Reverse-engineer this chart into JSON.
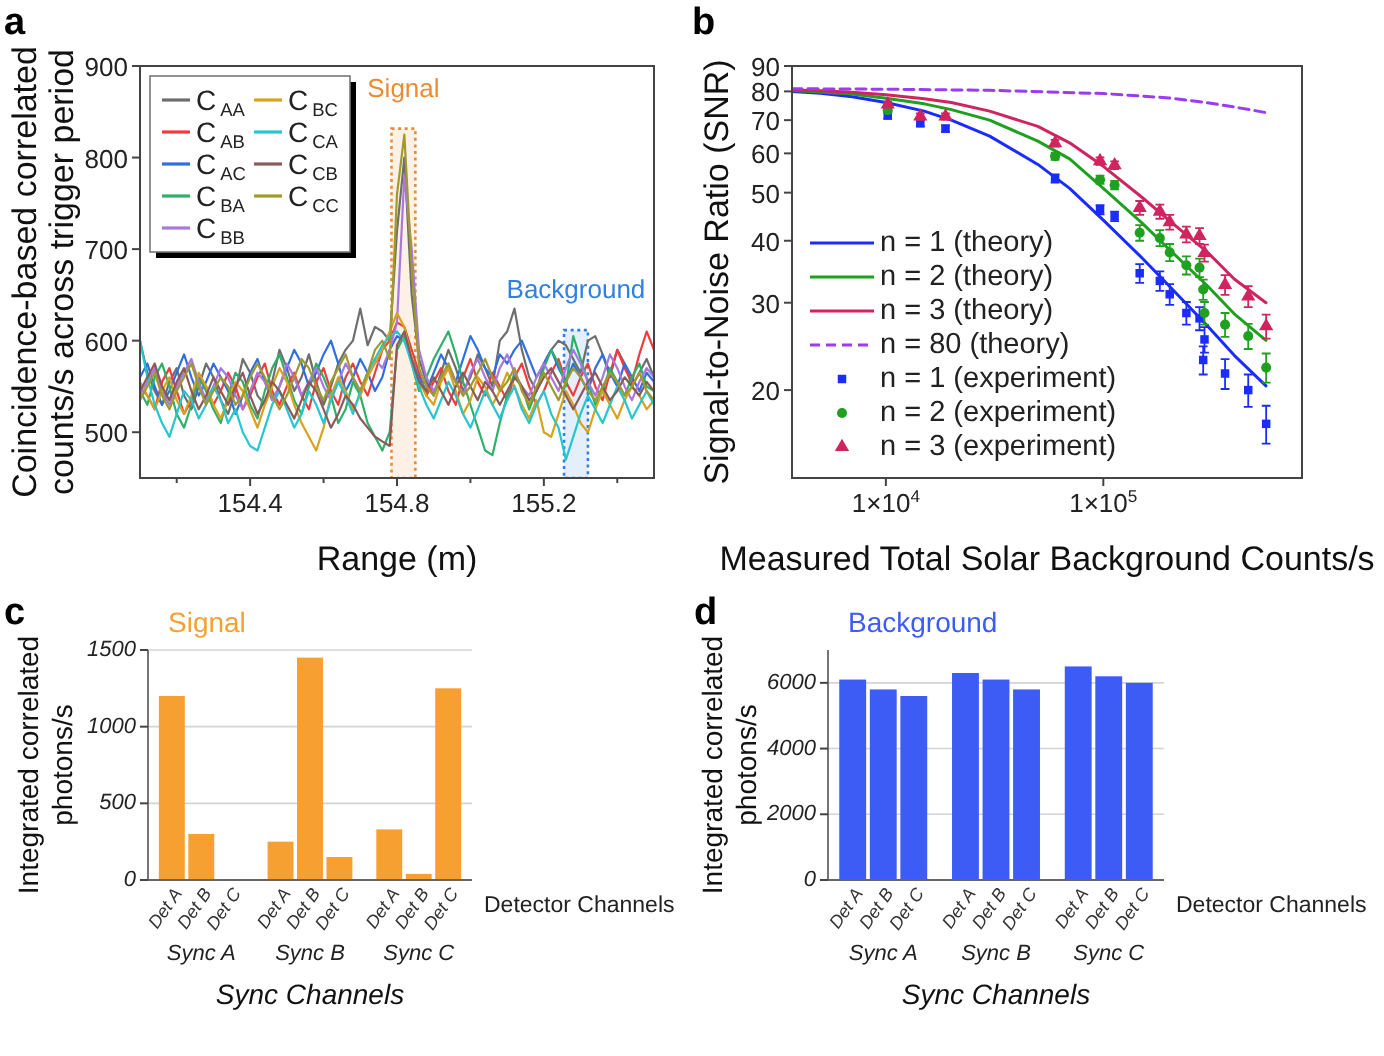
{
  "chart_data": [
    {
      "type": "line",
      "title": "a",
      "xlabel": "Range (m)",
      "ylabel": "Coincidence-based correlated counts/s across trigger period",
      "x": [
        154.1,
        154.12,
        154.14,
        154.16,
        154.18,
        154.2,
        154.22,
        154.24,
        154.26,
        154.28,
        154.3,
        154.32,
        154.34,
        154.36,
        154.38,
        154.4,
        154.42,
        154.44,
        154.46,
        154.48,
        154.5,
        154.52,
        154.54,
        154.56,
        154.58,
        154.6,
        154.62,
        154.64,
        154.66,
        154.68,
        154.7,
        154.72,
        154.74,
        154.76,
        154.78,
        154.8,
        154.82,
        154.84,
        154.86,
        154.88,
        154.9,
        154.92,
        154.94,
        154.96,
        154.98,
        155,
        155.02,
        155.04,
        155.06,
        155.08,
        155.1,
        155.12,
        155.14,
        155.16,
        155.18,
        155.2,
        155.22,
        155.24,
        155.26,
        155.28,
        155.3,
        155.32,
        155.34,
        155.36,
        155.38,
        155.4,
        155.42,
        155.44,
        155.46,
        155.48,
        155.5
      ],
      "xlim": [
        154.1,
        155.5
      ],
      "xticks": [
        {
          "value": 154.2,
          "label": null
        },
        154.4,
        {
          "value": 154.6,
          "label": null
        },
        154.8,
        {
          "value": 155.0,
          "label": null
        },
        155.2,
        {
          "value": 155.4,
          "label": null
        }
      ],
      "ylim": [
        450,
        900
      ],
      "yticks": [
        500,
        600,
        700,
        800,
        900
      ],
      "legend": "top left",
      "bands": [
        {
          "axis": "x",
          "from": 154.785,
          "to": 154.85,
          "label": "Signal",
          "color": "#f08a30"
        },
        {
          "axis": "x",
          "from": 155.255,
          "to": 155.32,
          "label": "Background",
          "color": "#2f80e0"
        }
      ],
      "series": [
        {
          "name": "C$_{AA}$",
          "color": "#6e6e6e",
          "values": [
            600,
            565,
            545,
            530,
            555,
            570,
            540,
            525,
            550,
            575,
            560,
            535,
            520,
            545,
            580,
            565,
            540,
            530,
            555,
            590,
            570,
            545,
            560,
            585,
            555,
            530,
            550,
            575,
            590,
            600,
            635,
            595,
            615,
            610,
            600,
            720,
            800,
            650,
            580,
            555,
            540,
            565,
            590,
            570,
            545,
            560,
            585,
            570,
            550,
            600,
            610,
            635,
            590,
            560,
            545,
            575,
            590,
            600,
            595,
            580,
            565,
            600,
            605,
            585,
            560,
            590,
            575,
            550,
            565,
            580,
            560
          ]
        },
        {
          "name": "C$_{AB}$",
          "color": "#f03c3c",
          "values": [
            550,
            540,
            525,
            555,
            570,
            545,
            520,
            535,
            560,
            550,
            530,
            545,
            565,
            550,
            525,
            540,
            560,
            575,
            545,
            530,
            550,
            565,
            540,
            525,
            555,
            570,
            545,
            530,
            560,
            575,
            555,
            540,
            565,
            590,
            600,
            620,
            615,
            590,
            565,
            540,
            555,
            570,
            545,
            530,
            560,
            580,
            555,
            540,
            565,
            550,
            535,
            560,
            575,
            550,
            530,
            545,
            565,
            580,
            555,
            540,
            560,
            575,
            550,
            535,
            565,
            590,
            570,
            555,
            585,
            610,
            590
          ]
        },
        {
          "name": "C$_{AC}$",
          "color": "#2f6fe0",
          "values": [
            560,
            575,
            550,
            530,
            545,
            565,
            585,
            560,
            540,
            555,
            575,
            560,
            545,
            520,
            540,
            565,
            580,
            555,
            535,
            550,
            570,
            590,
            575,
            550,
            565,
            585,
            600,
            575,
            545,
            560,
            580,
            565,
            545,
            560,
            590,
            605,
            600,
            580,
            560,
            545,
            565,
            585,
            570,
            555,
            580,
            605,
            590,
            570,
            560,
            585,
            575,
            590,
            600,
            580,
            560,
            575,
            590,
            570,
            555,
            575,
            560,
            545,
            570,
            585,
            565,
            550,
            575,
            560,
            545,
            565,
            555
          ]
        },
        {
          "name": "C$_{BA}$",
          "color": "#2fb06a",
          "values": [
            545,
            530,
            560,
            575,
            550,
            520,
            505,
            530,
            560,
            545,
            525,
            510,
            540,
            565,
            555,
            530,
            515,
            545,
            570,
            585,
            560,
            535,
            520,
            550,
            575,
            560,
            540,
            510,
            525,
            555,
            540,
            510,
            495,
            480,
            500,
            590,
            605,
            575,
            545,
            560,
            580,
            595,
            610,
            585,
            555,
            530,
            505,
            480,
            475,
            510,
            540,
            565,
            550,
            525,
            545,
            570,
            590,
            575,
            550,
            605,
            580,
            555,
            530,
            545,
            570,
            555,
            540,
            560,
            575,
            550,
            545
          ]
        },
        {
          "name": "C$_{BB}$",
          "color": "#a878e0",
          "values": [
            540,
            555,
            570,
            545,
            530,
            550,
            565,
            580,
            555,
            535,
            550,
            570,
            560,
            540,
            525,
            545,
            565,
            555,
            535,
            550,
            575,
            560,
            540,
            555,
            570,
            550,
            535,
            555,
            575,
            560,
            545,
            565,
            580,
            570,
            590,
            620,
            780,
            700,
            590,
            560,
            545,
            560,
            575,
            555,
            540,
            565,
            580,
            560,
            545,
            570,
            585,
            565,
            550,
            540,
            560,
            575,
            560,
            545,
            570,
            590,
            575,
            555,
            540,
            560,
            585,
            570,
            550,
            535,
            555,
            570,
            560
          ]
        },
        {
          "name": "C$_{BC}$",
          "color": "#d8a21c",
          "values": [
            555,
            540,
            525,
            545,
            560,
            535,
            520,
            540,
            565,
            550,
            530,
            515,
            535,
            555,
            545,
            525,
            505,
            530,
            550,
            570,
            555,
            530,
            510,
            495,
            480,
            505,
            540,
            560,
            545,
            525,
            540,
            560,
            575,
            590,
            610,
            630,
            615,
            580,
            555,
            540,
            530,
            555,
            570,
            545,
            520,
            535,
            560,
            550,
            530,
            545,
            565,
            550,
            530,
            515,
            535,
            500,
            495,
            520,
            545,
            530,
            510,
            500,
            525,
            545,
            530,
            515,
            535,
            550,
            540,
            525,
            535
          ]
        },
        {
          "name": "C$_{CA}$",
          "color": "#26c6d0",
          "values": [
            600,
            560,
            530,
            510,
            495,
            520,
            545,
            535,
            515,
            530,
            550,
            535,
            510,
            525,
            500,
            485,
            480,
            505,
            530,
            545,
            525,
            505,
            520,
            545,
            530,
            510,
            535,
            555,
            540,
            520,
            545,
            565,
            580,
            595,
            605,
            610,
            600,
            575,
            550,
            530,
            515,
            535,
            555,
            540,
            520,
            505,
            525,
            545,
            530,
            515,
            535,
            550,
            525,
            510,
            530,
            545,
            520,
            505,
            470,
            495,
            520,
            540,
            525,
            510,
            530,
            550,
            535,
            515,
            530,
            545,
            530
          ]
        },
        {
          "name": "C$_{CB}$",
          "color": "#8a5a5a",
          "values": [
            545,
            560,
            575,
            550,
            535,
            555,
            570,
            545,
            525,
            540,
            560,
            545,
            530,
            550,
            565,
            540,
            520,
            535,
            555,
            545,
            530,
            515,
            535,
            555,
            545,
            525,
            505,
            520,
            540,
            530,
            515,
            505,
            495,
            490,
            485,
            595,
            610,
            580,
            555,
            545,
            560,
            545,
            530,
            550,
            565,
            550,
            535,
            555,
            545,
            530,
            545,
            560,
            550,
            535,
            545,
            560,
            570,
            555,
            540,
            525,
            540,
            555,
            565,
            550,
            535,
            545,
            560,
            550,
            540,
            555,
            545
          ]
        },
        {
          "name": "C$_{CC}$",
          "color": "#a09a2c",
          "values": [
            535,
            550,
            565,
            540,
            525,
            545,
            560,
            575,
            550,
            530,
            545,
            560,
            550,
            530,
            540,
            560,
            575,
            560,
            540,
            525,
            540,
            560,
            580,
            570,
            550,
            535,
            555,
            570,
            585,
            560,
            545,
            565,
            590,
            600,
            580,
            760,
            825,
            680,
            570,
            550,
            540,
            560,
            575,
            555,
            540,
            550,
            565,
            580,
            560,
            545,
            555,
            570,
            545,
            530,
            550,
            565,
            550,
            535,
            555,
            570,
            560,
            545,
            535,
            550,
            565,
            555,
            540,
            550,
            565,
            545,
            535
          ]
        }
      ]
    },
    {
      "type": "line",
      "title": "b",
      "xlabel": "Measured Total Solar Background Counts/s",
      "ylabel": "Signal-to-Noise Ratio (SNR)",
      "log": "xy",
      "xlim": [
        3700,
        820000
      ],
      "xticks": [
        {
          "value": 10000,
          "label": "1×10$^{4}$"
        },
        {
          "value": 100000,
          "label": "1×10$^{5}$"
        }
      ],
      "ylim": [
        13.3,
        90
      ],
      "yticks": [
        20,
        30,
        40,
        50,
        60,
        70,
        80,
        90
      ],
      "legend": "bottom left",
      "series": [
        {
          "name": "n = 1 (theory)",
          "color": "#1a2cff",
          "x": [
            3700,
            5000,
            7000,
            10000,
            15000,
            20000,
            30000,
            50000,
            70000,
            100000,
            150000,
            200000,
            300000,
            400000,
            560000
          ],
          "values": [
            80,
            79.3,
            78,
            76,
            73,
            70,
            65,
            57,
            51,
            44,
            37,
            32.5,
            27,
            23.5,
            20.4
          ]
        },
        {
          "name": "n = 2 (theory)",
          "color": "#1fa01f",
          "x": [
            3700,
            5000,
            7000,
            10000,
            15000,
            20000,
            30000,
            50000,
            70000,
            100000,
            150000,
            200000,
            300000,
            400000,
            560000
          ],
          "values": [
            80.3,
            79.8,
            79,
            77.5,
            75.5,
            73.5,
            70,
            63.5,
            58.5,
            51,
            43.5,
            38.5,
            32.5,
            28.5,
            25.2
          ]
        },
        {
          "name": "n = 3 (theory)",
          "color": "#d0245e",
          "x": [
            3700,
            5000,
            7000,
            10000,
            15000,
            20000,
            30000,
            50000,
            70000,
            100000,
            150000,
            200000,
            300000,
            400000,
            560000
          ],
          "values": [
            80.5,
            80.2,
            79.7,
            78.8,
            77.3,
            76,
            73,
            68,
            63,
            56.5,
            49,
            44,
            38,
            33.5,
            30
          ]
        },
        {
          "name": "n = 80 (theory)",
          "color": "#9a3cf0",
          "line_style": "dashed",
          "x": [
            3700,
            10000,
            30000,
            100000,
            200000,
            300000,
            400000,
            560000
          ],
          "values": [
            81,
            80.8,
            80.4,
            79.2,
            77.6,
            75.9,
            74.4,
            72.5
          ]
        },
        {
          "name": "n = 1 (experiment)",
          "type": "scatter",
          "marker": "square",
          "color": "#1a2cff",
          "x": [
            10200,
            14400,
            18800,
            60000,
            96600,
            112700,
            147000,
            182000,
            202000,
            241000,
            277000,
            288000,
            292000,
            363000,
            464000,
            561000
          ],
          "values": [
            71.5,
            69,
            67.3,
            53.4,
            46.2,
            44.8,
            34.4,
            33.2,
            31.2,
            28.6,
            27.9,
            23,
            25.3,
            21.6,
            20,
            17.1
          ],
          "errors": [
            1,
            1,
            1,
            1,
            1,
            1,
            1.5,
            1.5,
            1.5,
            1.5,
            1.5,
            1.5,
            1.5,
            1.5,
            1.5,
            1.5
          ]
        },
        {
          "name": "n = 2 (experiment)",
          "type": "scatter",
          "marker": "circle",
          "color": "#1fa01f",
          "x": [
            10200,
            60000,
            96600,
            112700,
            147000,
            182000,
            202000,
            241000,
            277000,
            288000,
            292000,
            363000,
            464000,
            561000
          ],
          "values": [
            73.3,
            59.2,
            53.1,
            51.8,
            41.5,
            40.5,
            37.9,
            35.7,
            35.3,
            31.9,
            28.6,
            27.1,
            25.7,
            22.2
          ],
          "errors": [
            1,
            1,
            1,
            1,
            1.5,
            1.5,
            1.5,
            1.5,
            1.5,
            1.5,
            1.5,
            1.5,
            1.5,
            1.5
          ]
        },
        {
          "name": "n = 3 (experiment)",
          "type": "scatter",
          "marker": "triangle",
          "color": "#d0245e",
          "x": [
            10200,
            14400,
            18800,
            60000,
            96600,
            112700,
            147000,
            182000,
            202000,
            241000,
            277000,
            292000,
            363000,
            464000,
            561000
          ],
          "values": [
            75.3,
            71.2,
            71.2,
            62.9,
            57.9,
            56.8,
            46.6,
            45.8,
            43.6,
            41.2,
            40.9,
            37.8,
            32.6,
            30.9,
            26.9
          ],
          "errors": [
            1,
            1,
            1,
            1,
            1,
            1,
            1.5,
            1.5,
            1.5,
            1.5,
            1.5,
            1.5,
            1.5,
            1.5,
            1.5
          ]
        }
      ]
    },
    {
      "type": "bar",
      "title": "c",
      "subtitle": "Signal",
      "categories": [
        "Sync A",
        "Sync B",
        "Sync C"
      ],
      "xlabel": "Sync Channels",
      "ylabel": "Integrated correlated photons/s",
      "legend_title": "Detector Channels",
      "ylim": [
        0,
        1500
      ],
      "yticks": [
        0,
        500,
        1000,
        1500
      ],
      "grid": "y",
      "series": [
        {
          "name": "Det A",
          "color": "#f5a030",
          "values": [
            1200,
            250,
            330
          ]
        },
        {
          "name": "Det B",
          "color": "#f5a030",
          "values": [
            300,
            1450,
            40
          ]
        },
        {
          "name": "Det C",
          "color": "#f5a030",
          "values": [
            null,
            150,
            1250
          ]
        }
      ]
    },
    {
      "type": "bar",
      "title": "d",
      "subtitle": "Background",
      "categories": [
        "Sync A",
        "Sync B",
        "Sync C"
      ],
      "xlabel": "Sync Channels",
      "ylabel": "Integrated correlated photons/s",
      "legend_title": "Detector Channels",
      "ylim": [
        0,
        7000
      ],
      "yticks": [
        0,
        2000,
        4000,
        6000
      ],
      "grid": "y",
      "series": [
        {
          "name": "Det A",
          "color": "#3c5cf5",
          "values": [
            6100,
            6300,
            6500
          ]
        },
        {
          "name": "Det B",
          "color": "#3c5cf5",
          "values": [
            5800,
            6100,
            6200
          ]
        },
        {
          "name": "Det C",
          "color": "#3c5cf5",
          "values": [
            5600,
            5800,
            6000
          ]
        }
      ]
    }
  ]
}
